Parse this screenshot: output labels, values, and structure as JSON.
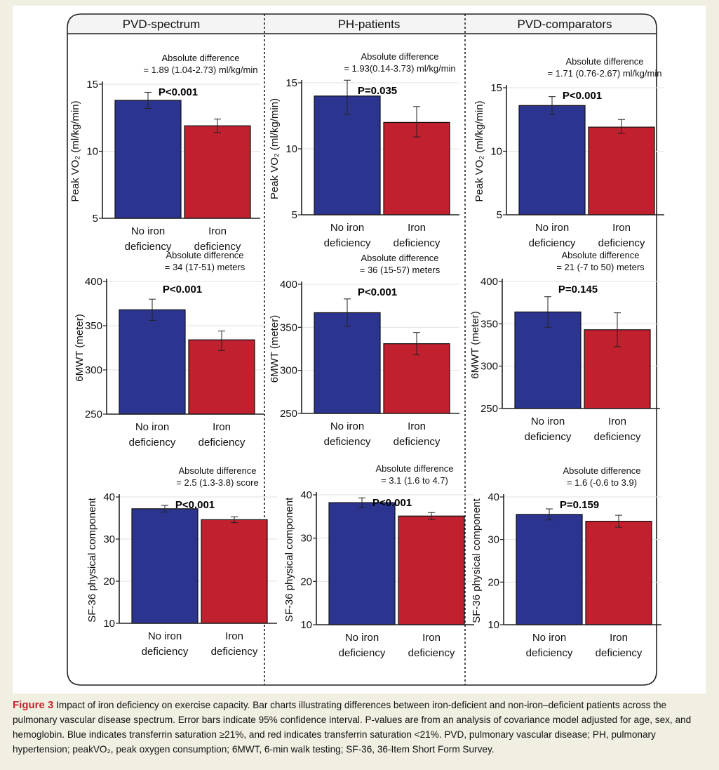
{
  "columns": [
    "PVD-spectrum",
    "PH-patients",
    "PVD-comparators"
  ],
  "colors": {
    "no_iron": "#2b3590",
    "iron": "#c1202f",
    "axis": "#222222",
    "caption_label": "#c1272d"
  },
  "chart_data": [
    {
      "type": "bar",
      "column": "PVD-spectrum",
      "categories": [
        "No iron\ndeficiency",
        "Iron\ndeficiency"
      ],
      "values": [
        13.8,
        11.9
      ],
      "ci": [
        [
          13.2,
          14.4
        ],
        [
          11.4,
          12.4
        ]
      ],
      "ylabel": "Peak VO₂ (ml/kg/min)",
      "ylim": [
        5,
        15
      ],
      "yticks": [
        5,
        10,
        15
      ],
      "annotation": [
        "Absolute difference",
        "= 1.89 (1.04-2.73) ml/kg/min"
      ],
      "pvalue": "P<0.001"
    },
    {
      "type": "bar",
      "column": "PH-patients",
      "categories": [
        "No iron\ndeficiency",
        "Iron\ndeficiency"
      ],
      "values": [
        14.0,
        12.0
      ],
      "ci": [
        [
          12.6,
          15.2
        ],
        [
          10.9,
          13.2
        ]
      ],
      "ylabel": "Peak VO₂ (ml/kg/min)",
      "ylim": [
        5,
        15
      ],
      "yticks": [
        5,
        10,
        15
      ],
      "annotation": [
        "Absolute difference",
        "= 1.93(0.14-3.73) ml/kg/min"
      ],
      "pvalue": "P=0.035"
    },
    {
      "type": "bar",
      "column": "PVD-comparators",
      "categories": [
        "No iron\ndeficiency",
        "Iron\ndeficiency"
      ],
      "values": [
        13.6,
        11.9
      ],
      "ci": [
        [
          12.9,
          14.3
        ],
        [
          11.4,
          12.5
        ]
      ],
      "ylabel": "Peak VO₂ (ml/kg/min)",
      "ylim": [
        5,
        15
      ],
      "yticks": [
        5,
        10,
        15
      ],
      "annotation": [
        "Absolute difference",
        "= 1.71 (0.76-2.67) ml/kg/min"
      ],
      "pvalue": "P<0.001"
    },
    {
      "type": "bar",
      "column": "PVD-spectrum",
      "categories": [
        "No iron\ndeficiency",
        "Iron\ndeficiency"
      ],
      "values": [
        368,
        334
      ],
      "ci": [
        [
          356,
          380
        ],
        [
          322,
          344
        ]
      ],
      "ylabel": "6MWT (meter)",
      "ylim": [
        250,
        400
      ],
      "yticks": [
        250,
        300,
        350,
        400
      ],
      "annotation": [
        "Absolute difference",
        "= 34 (17-51) meters"
      ],
      "pvalue": "P<0.001"
    },
    {
      "type": "bar",
      "column": "PH-patients",
      "categories": [
        "No iron\ndeficiency",
        "Iron\ndeficiency"
      ],
      "values": [
        367,
        331
      ],
      "ci": [
        [
          351,
          383
        ],
        [
          318,
          344
        ]
      ],
      "ylabel": "6MWT (meter)",
      "ylim": [
        250,
        400
      ],
      "yticks": [
        250,
        300,
        350,
        400
      ],
      "annotation": [
        "Absolute difference",
        "= 36 (15-57) meters"
      ],
      "pvalue": "P<0.001"
    },
    {
      "type": "bar",
      "column": "PVD-comparators",
      "categories": [
        "No iron\ndeficiency",
        "Iron\ndeficiency"
      ],
      "values": [
        364,
        343
      ],
      "ci": [
        [
          346,
          382
        ],
        [
          323,
          363
        ]
      ],
      "ylabel": "6MWT (meter)",
      "ylim": [
        250,
        400
      ],
      "yticks": [
        250,
        300,
        350,
        400
      ],
      "annotation": [
        "Absolute difference",
        "= 21 (-7 to 50) meters"
      ],
      "pvalue": "P=0.145"
    },
    {
      "type": "bar",
      "column": "PVD-spectrum",
      "categories": [
        "No iron\ndeficiency",
        "Iron\ndeficiency"
      ],
      "values": [
        37.2,
        34.6
      ],
      "ci": [
        [
          36.4,
          38.0
        ],
        [
          33.9,
          35.3
        ]
      ],
      "ylabel": "SF-36 physical component",
      "ylim": [
        10,
        40
      ],
      "yticks": [
        10,
        20,
        30,
        40
      ],
      "annotation": [
        "Absolute difference",
        "= 2.5 (1.3-3.8) score"
      ],
      "pvalue": "P<0.001"
    },
    {
      "type": "bar",
      "column": "PH-patients",
      "categories": [
        "No iron\ndeficiency",
        "Iron\ndeficiency"
      ],
      "values": [
        38.2,
        35.1
      ],
      "ci": [
        [
          37.1,
          39.3
        ],
        [
          34.3,
          35.9
        ]
      ],
      "ylabel": "SF-36 physical component",
      "ylim": [
        10,
        40
      ],
      "yticks": [
        10,
        20,
        30,
        40
      ],
      "annotation": [
        "Absolute difference",
        "= 3.1 (1.6 to 4.7)"
      ],
      "pvalue": "P<0.001"
    },
    {
      "type": "bar",
      "column": "PVD-comparators",
      "categories": [
        "No iron\ndeficiency",
        "Iron\ndeficiency"
      ],
      "values": [
        35.9,
        34.3
      ],
      "ci": [
        [
          34.6,
          37.2
        ],
        [
          32.9,
          35.7
        ]
      ],
      "ylabel": "SF-36 physical component",
      "ylim": [
        10,
        40
      ],
      "yticks": [
        10,
        20,
        30,
        40
      ],
      "annotation": [
        "Absolute difference",
        "= 1.6 (-0.6 to 3.9)"
      ],
      "pvalue": "P=0.159"
    }
  ],
  "caption": {
    "label": "Figure 3",
    "text": "Impact of iron deficiency on exercise capacity. Bar charts illustrating differences between iron-deficient and non-iron–deficient patients across the pulmonary vascular disease spectrum. Error bars indicate 95% confidence interval. P-values are from an analysis of covariance model adjusted for age, sex, and hemoglobin. Blue indicates transferrin saturation ≥21%, and red indicates transferrin saturation <21%. PVD, pulmonary vascular disease; PH, pulmonary hypertension; peakVO₂, peak oxygen consumption; 6MWT, 6-min walk testing; SF-36, 36-Item Short Form Survey."
  }
}
